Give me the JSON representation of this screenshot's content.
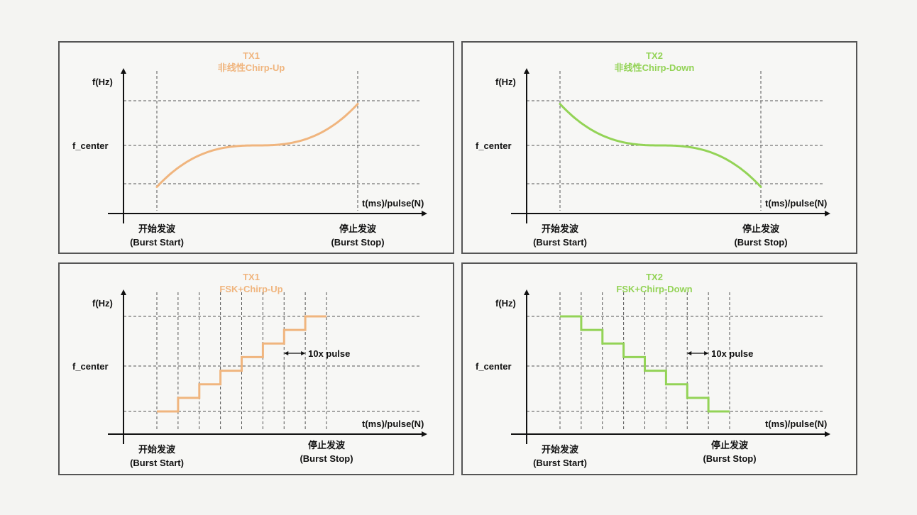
{
  "colors": {
    "tx1": "#f0b57e",
    "tx2": "#93d356",
    "axis": "#111111",
    "grid": "#555555"
  },
  "panels": [
    {
      "id": "tx1-nonlinear-up",
      "title": "TX1",
      "subtitle": "非线性Chirp-Up",
      "color_key": "tx1",
      "kind": "nonlinear-up",
      "y_label": "f(Hz)",
      "center_label": "f_center",
      "x_label": "t(ms)/pulse(N)",
      "start_label": [
        "开始发波",
        "(Burst Start)"
      ],
      "stop_label": [
        "停止发波",
        "(Burst Stop)"
      ]
    },
    {
      "id": "tx2-nonlinear-down",
      "title": "TX2",
      "subtitle": "非线性Chirp-Down",
      "color_key": "tx2",
      "kind": "nonlinear-down",
      "y_label": "f(Hz)",
      "center_label": "f_center",
      "x_label": "t(ms)/pulse(N)",
      "start_label": [
        "开始发波",
        "(Burst Start)"
      ],
      "stop_label": [
        "停止发波",
        "(Burst Stop)"
      ]
    },
    {
      "id": "tx1-fsk-up",
      "title": "TX1",
      "subtitle": "FSK+Chirp-Up",
      "color_key": "tx1",
      "kind": "fsk-up",
      "steps": 8,
      "pulse_label": "10x pulse",
      "y_label": "f(Hz)",
      "center_label": "f_center",
      "x_label": "t(ms)/pulse(N)",
      "start_label": [
        "开始发波",
        "(Burst Start)"
      ],
      "stop_label": [
        "停止发波",
        "(Burst Stop)"
      ]
    },
    {
      "id": "tx2-fsk-down",
      "title": "TX2",
      "subtitle": "FSK+Chirp-Down",
      "color_key": "tx2",
      "kind": "fsk-down",
      "steps": 8,
      "pulse_label": "10x pulse",
      "y_label": "f(Hz)",
      "center_label": "f_center",
      "x_label": "t(ms)/pulse(N)",
      "start_label": [
        "开始发波",
        "(Burst Start)"
      ],
      "stop_label": [
        "停止发波",
        "(Burst Stop)"
      ]
    }
  ]
}
